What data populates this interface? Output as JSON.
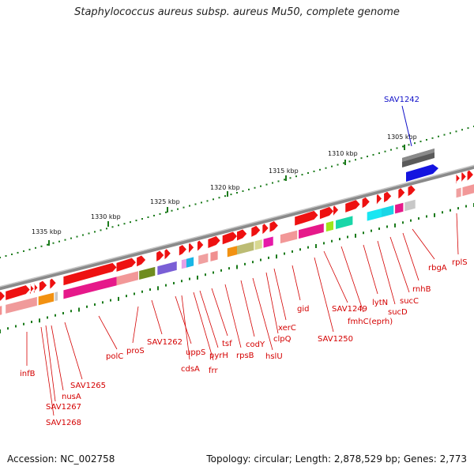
{
  "title": "Staphylococcus aureus subsp. aureus Mu50, complete genome",
  "footer": {
    "accession": "Accession: NC_002758",
    "stats": "Topology: circular; Length: 2,878,529 bp; Genes: 2,773"
  },
  "colors": {
    "backbone": "#8a8a8a",
    "tick": "#1a7a1a",
    "label": "#d40000",
    "highlight_label": "#1010c8",
    "gene_forward": "#ee1111"
  },
  "scale_ticks": [
    "1305 kbp",
    "1310 kbp",
    "1315 kbp",
    "1320 kbp",
    "1325 kbp",
    "1330 kbp",
    "1335 kbp"
  ],
  "gene_labels": [
    "SAV1242",
    "infB",
    "SAV1265",
    "nusA",
    "SAV1267",
    "SAV1268",
    "polC",
    "proS",
    "SAV1262",
    "uppS",
    "cdsA",
    "frr",
    "pyrH",
    "tsf",
    "rpsB",
    "codY",
    "hslU",
    "clpQ",
    "xerC",
    "gid",
    "SAV1250",
    "SAV1249",
    "fmhC(eprh)",
    "lytN",
    "sucD",
    "sucC",
    "rnhB",
    "rbgA",
    "rplS"
  ]
}
